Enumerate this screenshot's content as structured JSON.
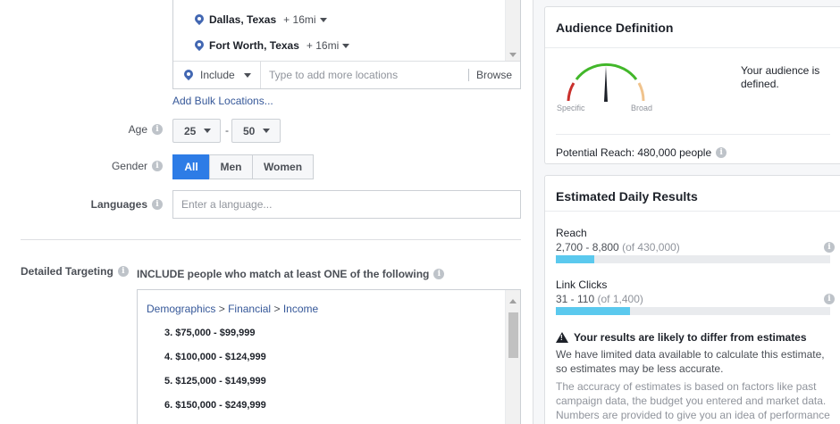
{
  "locations": {
    "items": [
      {
        "name": "Dallas, Texas",
        "radius": "+ 16mi"
      },
      {
        "name": "Fort Worth, Texas",
        "radius": "+ 16mi"
      }
    ],
    "include_label": "Include",
    "placeholder": "Type to add more locations",
    "browse_label": "Browse",
    "bulk_link": "Add Bulk Locations..."
  },
  "age": {
    "label": "Age",
    "min": "25",
    "max": "50",
    "separator": "-"
  },
  "gender": {
    "label": "Gender",
    "options": [
      "All",
      "Men",
      "Women"
    ],
    "selected": "All"
  },
  "languages": {
    "label": "Languages",
    "placeholder": "Enter a language..."
  },
  "detailed_targeting": {
    "label": "Detailed Targeting",
    "include_text": "INCLUDE people who match at least ONE of the following",
    "breadcrumb": [
      "Demographics",
      "Financial",
      "Income"
    ],
    "breadcrumb_sep": ">",
    "items": [
      "3. $75,000 - $99,999",
      "4. $100,000 - $124,999",
      "5. $125,000 - $149,999",
      "6. $150,000 - $249,999"
    ]
  },
  "audience_definition": {
    "title": "Audience Definition",
    "specific_label": "Specific",
    "broad_label": "Broad",
    "status_text": "Your audience is defined.",
    "potential_reach": "Potential Reach: 480,000 people",
    "gauge_position": 0.5
  },
  "estimated_results": {
    "title": "Estimated Daily Results",
    "metrics": [
      {
        "name": "Reach",
        "range": "2,700 - 8,800",
        "of": "(of 430,000)",
        "fill": 0.14
      },
      {
        "name": "Link Clicks",
        "range": "31 - 110",
        "of": "(of 1,400)",
        "fill": 0.27
      }
    ],
    "warning": "Your results are likely to differ from estimates",
    "para1": "We have limited data available to calculate this estimate, so estimates may be less accurate.",
    "para2": "The accuracy of estimates is based on factors like past campaign data, the budget you entered and market data. Numbers are provided to give you an idea of performance"
  },
  "colors": {
    "accent": "#2d7ce6",
    "link": "#365899",
    "bar_fill": "#5bc9ee",
    "gauge_red": "#c9302c",
    "gauge_green": "#42b72a",
    "gauge_orange": "#f0c38d"
  },
  "info_glyph": "i"
}
